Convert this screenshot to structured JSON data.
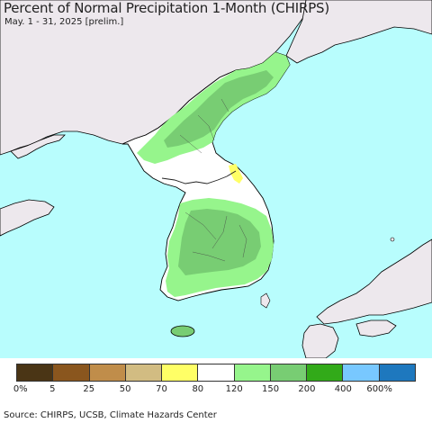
{
  "header": {
    "title": "Percent of Normal Precipitation 1-Month (CHIRPS)",
    "subtitle": "May. 1 - 31, 2025 [prelim.]"
  },
  "map": {
    "colors": {
      "sea": "#b8fdfd",
      "land_outside": "#ede8ed",
      "border": "#222222",
      "coast": "#000000"
    }
  },
  "legend": {
    "colors": [
      "#4a3515",
      "#8a561e",
      "#c08d4a",
      "#d2bc82",
      "#ffff66",
      "#ffffff",
      "#96f58c",
      "#78cd73",
      "#32aa19",
      "#78c8ff",
      "#1e78be"
    ],
    "labels": [
      "0%",
      "5",
      "25",
      "50",
      "70",
      "80",
      "120",
      "150",
      "200",
      "400",
      "600%"
    ]
  },
  "footer": {
    "source": "Source: CHIRPS, UCSB, Climate Hazards Center"
  }
}
